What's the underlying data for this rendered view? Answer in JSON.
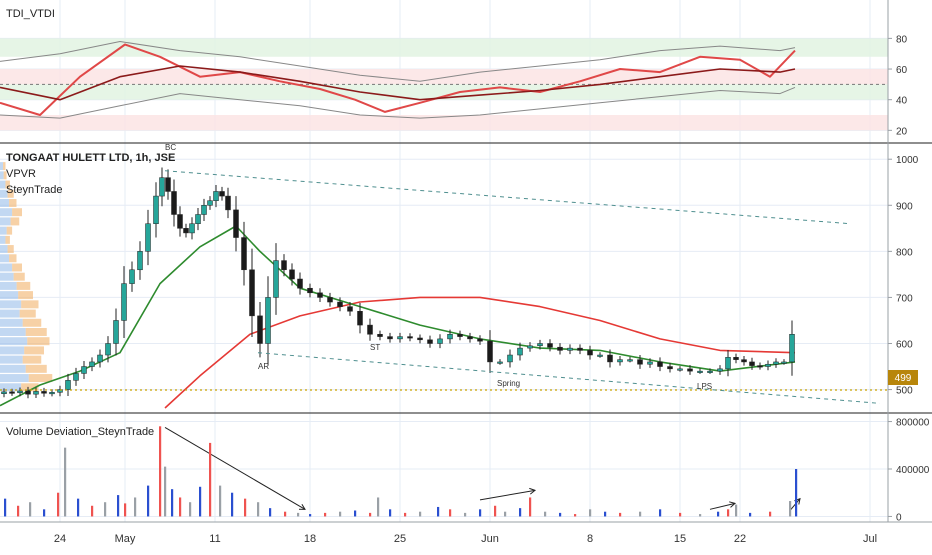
{
  "colors": {
    "up": "#26a69a",
    "down": "#ef5350",
    "candle_body": "#1b1b1b",
    "ma_long": "#e53935",
    "ma_short": "#2e8b2e",
    "rsi": "#e04848",
    "tdi_signal": "#8b1a1a",
    "band": "#888888",
    "zone_green": "#e2f3e2",
    "zone_red": "#fbe4e4",
    "price_tag": "#b8860b",
    "grid": "#e6ecf5"
  },
  "indicators": {
    "tdi_label": "TDI_VTDI",
    "instrument_label": "TONGAAT HULETT LTD, 1h, JSE",
    "vpvr_label": "VPVR",
    "steyn_label": "SteynTrade",
    "volume_label": "Volume Deviation_SteynTrade"
  },
  "price_tag": "499",
  "annotations": {
    "bc": "BC",
    "ar": "AR",
    "st": "ST",
    "spring": "Spring",
    "lps": "LPS"
  },
  "chart_data": [
    {
      "type": "line",
      "name_panel": "TDI_VTDI",
      "ylim": [
        15,
        92
      ],
      "yticks": [
        20,
        40,
        60,
        80
      ],
      "zones": [
        [
          68,
          80
        ],
        [
          50,
          60
        ],
        [
          40,
          50
        ],
        [
          20,
          30
        ]
      ],
      "grid": true,
      "series": [
        {
          "name": "",
          "x": [
            0,
            40,
            80,
            125,
            160,
            200,
            240,
            280,
            320,
            355,
            385,
            420,
            460,
            500,
            540,
            580,
            620,
            660,
            700,
            740,
            770,
            795
          ],
          "values": [
            38,
            30,
            55,
            76,
            68,
            55,
            58,
            52,
            47,
            40,
            32,
            38,
            45,
            48,
            45,
            52,
            60,
            58,
            68,
            66,
            55,
            72
          ]
        },
        {
          "name": "",
          "x": [
            0,
            60,
            120,
            180,
            240,
            300,
            360,
            420,
            480,
            540,
            600,
            660,
            720,
            780,
            795
          ],
          "values": [
            48,
            40,
            55,
            62,
            58,
            52,
            45,
            40,
            43,
            46,
            50,
            55,
            60,
            58,
            60
          ]
        },
        {
          "name": "",
          "x": [
            0,
            60,
            120,
            180,
            240,
            300,
            360,
            420,
            480,
            540,
            600,
            660,
            720,
            780,
            795
          ],
          "values": [
            65,
            70,
            78,
            72,
            68,
            62,
            56,
            52,
            58,
            62,
            66,
            72,
            75,
            72,
            74
          ]
        },
        {
          "name": "",
          "x": [
            0,
            60,
            120,
            180,
            240,
            300,
            360,
            420,
            480,
            540,
            600,
            660,
            720,
            780,
            795
          ],
          "values": [
            30,
            28,
            36,
            44,
            40,
            36,
            30,
            28,
            30,
            34,
            38,
            42,
            46,
            44,
            48
          ]
        }
      ]
    },
    {
      "type": "line",
      "name_panel": "TONGAAT HULETT LTD, 1h, JSE",
      "ylim": [
        460,
        1020
      ],
      "yticks": [
        500,
        600,
        700,
        800,
        900,
        1000
      ],
      "grid": true,
      "candles": {
        "x": [
          4,
          12,
          20,
          28,
          36,
          44,
          52,
          60,
          68,
          76,
          84,
          92,
          100,
          108,
          116,
          124,
          132,
          140,
          148,
          156,
          162,
          168,
          174,
          180,
          186,
          192,
          198,
          204,
          210,
          216,
          222,
          228,
          236,
          244,
          252,
          260,
          268,
          276,
          284,
          292,
          300,
          310,
          320,
          330,
          340,
          350,
          360,
          370,
          380,
          390,
          400,
          410,
          420,
          430,
          440,
          450,
          460,
          470,
          480,
          490,
          500,
          510,
          520,
          530,
          540,
          550,
          560,
          570,
          580,
          590,
          600,
          610,
          620,
          630,
          640,
          650,
          660,
          670,
          680,
          690,
          700,
          710,
          720,
          728,
          736,
          744,
          752,
          760,
          768,
          776,
          784,
          792
        ],
        "values": [
          495,
          493,
          497,
          490,
          496,
          492,
          494,
          500,
          520,
          535,
          550,
          560,
          575,
          600,
          650,
          730,
          760,
          800,
          860,
          920,
          960,
          930,
          880,
          850,
          840,
          860,
          880,
          900,
          910,
          930,
          920,
          890,
          830,
          760,
          660,
          600,
          700,
          780,
          760,
          740,
          720,
          710,
          700,
          690,
          680,
          670,
          640,
          620,
          615,
          610,
          615,
          612,
          608,
          600,
          610,
          620,
          615,
          610,
          605,
          560,
          560,
          575,
          590,
          595,
          600,
          592,
          585,
          590,
          585,
          575,
          575,
          560,
          565,
          565,
          555,
          560,
          550,
          545,
          545,
          540,
          540,
          540,
          545,
          570,
          565,
          560,
          552,
          550,
          555,
          560,
          560,
          620
        ]
      },
      "series": [
        {
          "name": "",
          "x": [
            165,
            200,
            250,
            300,
            360,
            420,
            480,
            540,
            600,
            660,
            720,
            795
          ],
          "values": [
            460,
            530,
            620,
            660,
            690,
            700,
            700,
            680,
            650,
            610,
            585,
            580
          ]
        },
        {
          "name": "",
          "x": [
            0,
            40,
            80,
            120,
            160,
            200,
            236,
            260,
            300,
            360,
            420,
            480,
            540,
            600,
            660,
            720,
            795
          ],
          "values": [
            465,
            510,
            540,
            580,
            730,
            810,
            855,
            800,
            720,
            680,
            640,
            610,
            590,
            585,
            560,
            540,
            560
          ]
        }
      ],
      "trendlines": [
        {
          "x": [
            165,
            850
          ],
          "values": [
            975,
            860
          ]
        },
        {
          "x": [
            258,
            880
          ],
          "values": [
            580,
            470
          ]
        }
      ],
      "support_level": 499,
      "volume_profile_rows": [
        [
          985,
          0.1
        ],
        [
          965,
          0.12
        ],
        [
          945,
          0.18
        ],
        [
          925,
          0.25
        ],
        [
          905,
          0.3
        ],
        [
          885,
          0.4
        ],
        [
          865,
          0.35
        ],
        [
          845,
          0.22
        ],
        [
          825,
          0.18
        ],
        [
          805,
          0.25
        ],
        [
          785,
          0.3
        ],
        [
          765,
          0.4
        ],
        [
          745,
          0.45
        ],
        [
          725,
          0.55
        ],
        [
          705,
          0.6
        ],
        [
          685,
          0.7
        ],
        [
          665,
          0.65
        ],
        [
          645,
          0.75
        ],
        [
          625,
          0.85
        ],
        [
          605,
          0.9
        ],
        [
          585,
          0.8
        ],
        [
          565,
          0.75
        ],
        [
          545,
          0.85
        ],
        [
          525,
          0.95
        ],
        [
          505,
          0.7
        ]
      ]
    },
    {
      "type": "bar",
      "name_panel": "Volume Deviation_SteynTrade",
      "ylim": [
        -30000,
        830000
      ],
      "yticks": [
        0,
        400000,
        800000
      ],
      "xticklabels": [
        "24",
        "May",
        "11",
        "18",
        "25",
        "Jun",
        "8",
        "15",
        "22",
        "Jul"
      ],
      "xticks": [
        60,
        125,
        215,
        310,
        400,
        490,
        590,
        680,
        740,
        870
      ],
      "values_x": [
        5,
        18,
        30,
        44,
        58,
        65,
        78,
        92,
        105,
        118,
        125,
        135,
        148,
        160,
        165,
        172,
        180,
        190,
        200,
        210,
        220,
        232,
        245,
        258,
        270,
        285,
        298,
        310,
        325,
        340,
        355,
        370,
        378,
        390,
        405,
        420,
        438,
        450,
        465,
        480,
        495,
        505,
        520,
        530,
        545,
        560,
        575,
        590,
        605,
        620,
        640,
        660,
        680,
        700,
        718,
        728,
        736,
        750,
        770,
        790,
        796
      ],
      "values": [
        150000,
        90000,
        120000,
        60000,
        200000,
        580000,
        150000,
        90000,
        120000,
        180000,
        110000,
        160000,
        260000,
        760000,
        420000,
        230000,
        160000,
        120000,
        250000,
        620000,
        260000,
        200000,
        150000,
        120000,
        70000,
        40000,
        30000,
        20000,
        30000,
        40000,
        50000,
        30000,
        160000,
        60000,
        30000,
        40000,
        80000,
        60000,
        30000,
        60000,
        90000,
        40000,
        70000,
        160000,
        40000,
        30000,
        20000,
        60000,
        40000,
        30000,
        40000,
        60000,
        30000,
        20000,
        40000,
        60000,
        100000,
        30000,
        40000,
        130000,
        400000
      ],
      "trendlines": [
        {
          "x": [
            165,
            305
          ],
          "values": [
            750000,
            60000
          ]
        },
        {
          "x": [
            480,
            535
          ],
          "values": [
            140000,
            220000
          ]
        },
        {
          "x": [
            710,
            735
          ],
          "values": [
            60000,
            110000
          ]
        },
        {
          "x": [
            790,
            800
          ],
          "values": [
            50000,
            150000
          ]
        }
      ]
    }
  ]
}
